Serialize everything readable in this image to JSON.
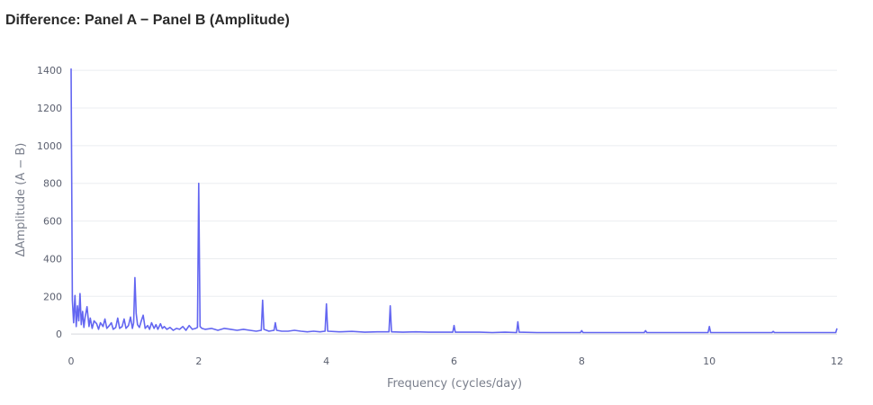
{
  "chart_data": {
    "type": "line",
    "title": "Difference: Panel A − Panel B (Amplitude)",
    "xlabel": "Frequency (cycles/day)",
    "ylabel": "ΔAmplitude (A − B)",
    "xlim": [
      0,
      12
    ],
    "ylim": [
      -90,
      1420
    ],
    "x_ticks": [
      0,
      2,
      4,
      6,
      8,
      10,
      12
    ],
    "y_ticks": [
      0,
      200,
      400,
      600,
      800,
      1000,
      1200,
      1400
    ],
    "grid": true,
    "line_color": "#6366f1",
    "series": [
      {
        "x": [
          0,
          0.02,
          0.04,
          0.06,
          0.08,
          0.1,
          0.12,
          0.14,
          0.16,
          0.18,
          0.2,
          0.22,
          0.25,
          0.28,
          0.3,
          0.33,
          0.36,
          0.4,
          0.43,
          0.46,
          0.5,
          0.53,
          0.56,
          0.6,
          0.63,
          0.66,
          0.7,
          0.73,
          0.76,
          0.8,
          0.83,
          0.86,
          0.9,
          0.93,
          0.96,
          0.98,
          1.0,
          1.02,
          1.04,
          1.07,
          1.1,
          1.13,
          1.16,
          1.2,
          1.23,
          1.26,
          1.3,
          1.33,
          1.36,
          1.4,
          1.43,
          1.46,
          1.5,
          1.55,
          1.6,
          1.65,
          1.7,
          1.75,
          1.8,
          1.85,
          1.9,
          1.95,
          1.98,
          2.0,
          2.02,
          2.05,
          2.1,
          2.2,
          2.3,
          2.4,
          2.5,
          2.6,
          2.7,
          2.8,
          2.9,
          2.98,
          3.0,
          3.02,
          3.1,
          3.18,
          3.2,
          3.22,
          3.3,
          3.4,
          3.5,
          3.6,
          3.7,
          3.8,
          3.9,
          3.98,
          4.0,
          4.02,
          4.2,
          4.4,
          4.6,
          4.8,
          4.98,
          5.0,
          5.02,
          5.2,
          5.4,
          5.6,
          5.8,
          5.98,
          6.0,
          6.02,
          6.2,
          6.4,
          6.6,
          6.8,
          6.98,
          7.0,
          7.02,
          7.3,
          7.6,
          7.98,
          8.0,
          8.02,
          8.5,
          8.98,
          9.0,
          9.02,
          9.5,
          9.98,
          10.0,
          10.02,
          10.5,
          10.98,
          11.0,
          11.02,
          11.5,
          11.98,
          12.0
        ],
        "y": [
          1410,
          180,
          60,
          205,
          40,
          150,
          70,
          215,
          50,
          120,
          35,
          90,
          145,
          40,
          85,
          30,
          70,
          55,
          25,
          60,
          40,
          80,
          30,
          45,
          60,
          25,
          35,
          85,
          30,
          40,
          80,
          30,
          45,
          90,
          30,
          60,
          300,
          110,
          50,
          35,
          70,
          100,
          30,
          45,
          25,
          60,
          30,
          50,
          25,
          55,
          30,
          40,
          25,
          35,
          20,
          30,
          25,
          40,
          20,
          45,
          25,
          30,
          35,
          800,
          40,
          30,
          25,
          30,
          20,
          30,
          25,
          20,
          25,
          20,
          15,
          20,
          180,
          25,
          15,
          20,
          60,
          20,
          15,
          15,
          20,
          15,
          12,
          15,
          12,
          15,
          160,
          15,
          12,
          14,
          10,
          12,
          12,
          150,
          12,
          10,
          12,
          10,
          10,
          10,
          45,
          10,
          10,
          10,
          8,
          10,
          8,
          65,
          10,
          8,
          8,
          8,
          18,
          8,
          8,
          8,
          18,
          8,
          8,
          8,
          40,
          8,
          8,
          8,
          14,
          8,
          8,
          8,
          30
        ]
      }
    ]
  }
}
